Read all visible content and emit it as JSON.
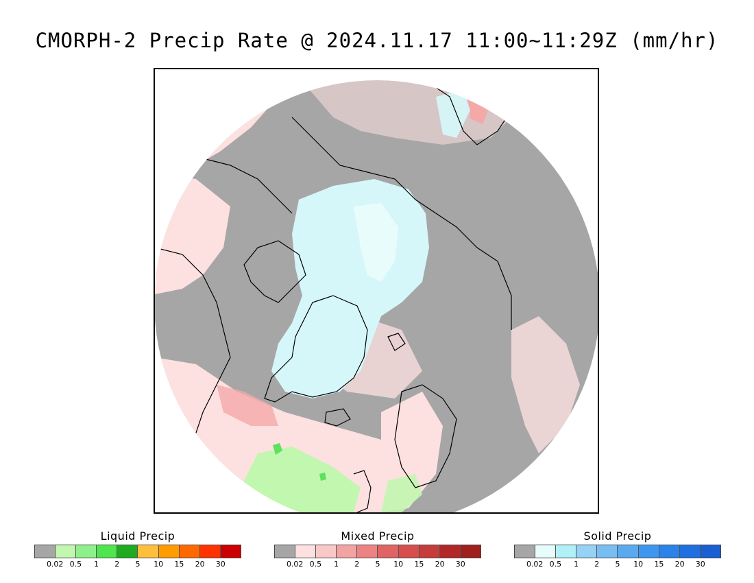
{
  "title": "CMORPH-2 Precip Rate @ 2024.11.17 11:00~11:29Z (mm/hr)",
  "map": {
    "projection": "polar-stereographic-north",
    "colors": {
      "no_precip": "#a6a6a6",
      "mixed_light": "#fde0e0",
      "mixed_mid": "#f4a9a9",
      "mixed_heavy": "#d65f5f",
      "solid_light": "#d6f7fa",
      "solid_lighter": "#eefcfd",
      "liquid_light": "#c2f7b0",
      "liquid_mid": "#5fe05f",
      "liquid_heavy": "#1aa51a",
      "coast": "#000000",
      "outside": "#ffffff"
    }
  },
  "legends": [
    {
      "title": "Liquid Precip",
      "colors": [
        "#a6a6a6",
        "#c2f7b0",
        "#8ef08a",
        "#4ee64e",
        "#1faa1f",
        "#ffbf3a",
        "#ff9c00",
        "#ff6a00",
        "#ff3300",
        "#cc0000"
      ],
      "ticks": [
        "0.02",
        "0.5",
        "1",
        "2",
        "5",
        "10",
        "15",
        "20",
        "30"
      ]
    },
    {
      "title": "Mixed Precip",
      "colors": [
        "#a6a6a6",
        "#fde0e0",
        "#fbc8c8",
        "#f4a3a3",
        "#ec8282",
        "#e06464",
        "#d64e4e",
        "#c63c3c",
        "#b22828",
        "#a01f1f"
      ],
      "ticks": [
        "0.02",
        "0.5",
        "1",
        "2",
        "5",
        "10",
        "15",
        "20",
        "30"
      ]
    },
    {
      "title": "Solid Precip",
      "colors": [
        "#a6a6a6",
        "#e6fcfd",
        "#b2f0f8",
        "#96d2f6",
        "#78bef2",
        "#5aaaf0",
        "#3f96ee",
        "#2b82e8",
        "#1f6fe0",
        "#1a5fd2"
      ],
      "ticks": [
        "0.02",
        "0.5",
        "1",
        "2",
        "5",
        "10",
        "15",
        "20",
        "30"
      ]
    }
  ]
}
